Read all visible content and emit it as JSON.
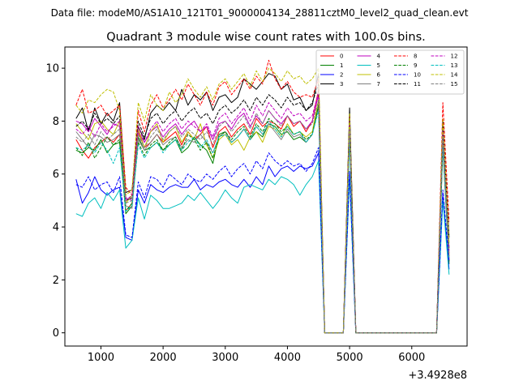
{
  "chart_data": {
    "type": "line",
    "suptitle": "Data file: modeM0/AS1A10_121T01_9000004134_28811cztM0_level2_quad_clean.evt",
    "title": "Quadrant 3 module wise count rates with 100.0s bins.",
    "xlabel": "",
    "ylabel": "",
    "x_offset_label": "+3.4928e8",
    "xlim": [
      420,
      6890
    ],
    "ylim": [
      -0.5,
      10.8
    ],
    "x_ticks": [
      1000,
      2000,
      3000,
      4000,
      5000,
      6000
    ],
    "x_tick_labels": [
      "1000",
      "2000",
      "3000",
      "4000",
      "5000",
      "6000"
    ],
    "y_ticks": [
      0,
      2,
      4,
      6,
      8,
      10
    ],
    "y_tick_labels": [
      "0",
      "2",
      "4",
      "6",
      "8",
      "10"
    ],
    "x": [
      600,
      700,
      800,
      900,
      1000,
      1100,
      1200,
      1300,
      1400,
      1500,
      1600,
      1700,
      1800,
      1900,
      2000,
      2100,
      2200,
      2300,
      2400,
      2500,
      2600,
      2700,
      2800,
      2900,
      3000,
      3100,
      3200,
      3300,
      3400,
      3500,
      3600,
      3700,
      3800,
      3900,
      4000,
      4100,
      4200,
      4300,
      4400,
      4500,
      4600,
      4700,
      4800,
      4900,
      5000,
      5100,
      5200,
      5300,
      5400,
      5500,
      5600,
      5700,
      5800,
      5900,
      6000,
      6100,
      6200,
      6300,
      6400,
      6500,
      6600
    ],
    "series": [
      {
        "name": "0",
        "color": "#ff0000",
        "dash": "solid",
        "values": [
          7.3,
          6.9,
          6.6,
          7.0,
          7.2,
          7.4,
          7.2,
          7.5,
          4.6,
          4.9,
          7.6,
          7.0,
          7.2,
          7.5,
          7.2,
          7.4,
          7.6,
          7.1,
          7.6,
          7.3,
          7.5,
          7.8,
          7.0,
          7.6,
          7.8,
          7.4,
          7.7,
          7.9,
          7.5,
          8.1,
          7.8,
          8.0,
          7.9,
          7.7,
          8.2,
          7.8,
          8.0,
          7.6,
          8.0,
          9.2,
          0,
          0,
          0,
          0,
          8.2,
          0,
          0,
          0,
          0,
          0,
          0,
          0,
          0,
          0,
          0,
          0,
          0,
          0,
          0,
          7.5,
          3.0
        ]
      },
      {
        "name": "1",
        "color": "#008000",
        "dash": "solid",
        "values": [
          6.9,
          6.8,
          7.0,
          6.9,
          7.3,
          6.8,
          7.1,
          7.2,
          4.5,
          4.8,
          7.4,
          6.9,
          7.0,
          7.2,
          6.9,
          7.1,
          7.3,
          6.8,
          7.0,
          7.4,
          7.1,
          6.9,
          6.4,
          7.5,
          7.6,
          7.2,
          7.4,
          7.7,
          7.3,
          7.6,
          7.4,
          7.9,
          7.8,
          7.5,
          7.6,
          7.3,
          7.4,
          7.2,
          7.5,
          8.6,
          0,
          0,
          0,
          0,
          7.6,
          0,
          0,
          0,
          0,
          0,
          0,
          0,
          0,
          0,
          0,
          0,
          0,
          0,
          0,
          7.0,
          2.6
        ]
      },
      {
        "name": "2",
        "color": "#0000ff",
        "dash": "solid",
        "values": [
          5.8,
          4.9,
          5.3,
          5.9,
          5.4,
          5.2,
          5.4,
          5.5,
          3.6,
          3.5,
          5.4,
          4.9,
          5.6,
          5.4,
          5.3,
          5.5,
          5.6,
          5.5,
          5.5,
          5.8,
          5.4,
          5.6,
          5.5,
          5.7,
          5.8,
          5.6,
          5.5,
          5.8,
          5.5,
          5.9,
          5.6,
          6.3,
          5.9,
          6.2,
          6.3,
          6.1,
          6.3,
          6.2,
          6.3,
          6.8,
          0,
          0,
          0,
          0,
          6.0,
          0,
          0,
          0,
          0,
          0,
          0,
          0,
          0,
          0,
          0,
          0,
          0,
          0,
          0,
          5.2,
          2.4
        ]
      },
      {
        "name": "3",
        "color": "#000000",
        "dash": "solid",
        "values": [
          8.1,
          8.5,
          7.6,
          8.5,
          7.9,
          8.3,
          8.0,
          8.7,
          5.3,
          5.4,
          7.8,
          7.3,
          8.3,
          8.6,
          8.4,
          8.7,
          8.4,
          9.2,
          8.6,
          9.0,
          8.8,
          9.1,
          8.4,
          8.9,
          9.0,
          8.7,
          8.9,
          9.6,
          9.4,
          9.2,
          9.5,
          9.8,
          9.7,
          9.2,
          9.4,
          8.8,
          8.9,
          8.4,
          8.6,
          9.8,
          0,
          0,
          0,
          0,
          8.5,
          0,
          0,
          0,
          0,
          0,
          0,
          0,
          0,
          0,
          0,
          0,
          0,
          0,
          0,
          8.0,
          3.6
        ]
      },
      {
        "name": "4",
        "color": "#bf00bf",
        "dash": "solid",
        "values": [
          8.0,
          7.9,
          7.6,
          8.1,
          7.8,
          7.5,
          7.9,
          7.8,
          5.1,
          5.0,
          7.6,
          7.2,
          7.6,
          7.8,
          7.4,
          7.7,
          7.9,
          7.5,
          7.8,
          8.0,
          7.6,
          7.8,
          7.3,
          7.9,
          8.0,
          7.7,
          8.1,
          8.3,
          7.8,
          8.2,
          7.9,
          8.4,
          8.1,
          7.9,
          8.2,
          7.9,
          8.0,
          7.7,
          8.0,
          9.0,
          0,
          0,
          0,
          0,
          7.9,
          0,
          0,
          0,
          0,
          0,
          0,
          0,
          0,
          0,
          0,
          0,
          0,
          0,
          0,
          7.6,
          2.8
        ]
      },
      {
        "name": "5",
        "color": "#00bfbf",
        "dash": "solid",
        "values": [
          4.5,
          4.4,
          4.9,
          5.1,
          4.7,
          5.3,
          5.0,
          5.4,
          3.2,
          3.5,
          5.1,
          4.3,
          5.2,
          5.0,
          4.7,
          4.7,
          4.8,
          4.9,
          5.2,
          5.0,
          5.3,
          5.0,
          4.7,
          5.0,
          5.4,
          5.1,
          4.9,
          5.5,
          5.6,
          5.5,
          5.4,
          5.8,
          5.6,
          5.9,
          5.8,
          5.6,
          5.2,
          5.6,
          5.9,
          6.5,
          0,
          0,
          0,
          0,
          5.9,
          0,
          0,
          0,
          0,
          0,
          0,
          0,
          0,
          0,
          0,
          0,
          0,
          0,
          0,
          5.0,
          2.2
        ]
      },
      {
        "name": "6",
        "color": "#bfbf00",
        "dash": "solid",
        "values": [
          7.9,
          7.6,
          7.3,
          7.9,
          8.0,
          7.7,
          7.5,
          8.0,
          4.9,
          5.2,
          7.7,
          7.0,
          7.6,
          7.9,
          7.2,
          7.6,
          7.8,
          7.2,
          7.6,
          7.3,
          7.9,
          7.1,
          6.6,
          7.3,
          7.5,
          7.1,
          7.3,
          6.9,
          7.4,
          7.6,
          7.2,
          7.8,
          7.7,
          7.4,
          7.9,
          7.5,
          7.6,
          7.4,
          7.6,
          8.8,
          0,
          0,
          0,
          0,
          7.7,
          0,
          0,
          0,
          0,
          0,
          0,
          0,
          0,
          0,
          0,
          0,
          0,
          0,
          0,
          7.2,
          2.9
        ]
      },
      {
        "name": "7",
        "color": "#808080",
        "dash": "solid",
        "values": [
          7.6,
          7.3,
          7.0,
          7.5,
          7.4,
          7.2,
          7.3,
          7.5,
          4.8,
          4.7,
          7.3,
          6.9,
          7.2,
          7.5,
          7.1,
          7.3,
          7.4,
          7.0,
          7.3,
          7.2,
          7.5,
          7.2,
          6.8,
          7.4,
          7.6,
          7.2,
          7.4,
          7.7,
          7.3,
          7.8,
          7.5,
          7.9,
          7.6,
          7.3,
          7.7,
          7.4,
          7.5,
          7.2,
          7.5,
          8.5,
          0,
          0,
          0,
          0,
          7.4,
          0,
          0,
          0,
          0,
          0,
          0,
          0,
          0,
          0,
          0,
          0,
          0,
          0,
          0,
          7.1,
          2.7
        ]
      },
      {
        "name": "8",
        "color": "#ff0000",
        "dash": "dashed",
        "values": [
          8.6,
          9.2,
          8.3,
          8.4,
          8.6,
          8.2,
          8.4,
          8.6,
          5.5,
          5.2,
          8.4,
          7.6,
          8.6,
          9.0,
          8.5,
          8.8,
          9.2,
          8.8,
          9.4,
          9.0,
          8.6,
          9.1,
          8.6,
          9.3,
          9.5,
          9.0,
          9.3,
          9.6,
          9.2,
          9.7,
          9.4,
          10.3,
          9.6,
          9.2,
          9.5,
          9.1,
          8.9,
          9.0,
          8.9,
          9.6,
          0,
          0,
          0,
          0,
          8.2,
          0,
          0,
          0,
          0,
          0,
          0,
          0,
          0,
          0,
          0,
          0,
          0,
          0,
          0,
          8.7,
          4.2
        ]
      },
      {
        "name": "9",
        "color": "#008000",
        "dash": "dashed",
        "values": [
          7.0,
          6.7,
          7.2,
          6.6,
          7.0,
          7.4,
          7.1,
          7.3,
          4.6,
          4.9,
          7.2,
          6.7,
          7.1,
          7.3,
          6.9,
          7.2,
          7.4,
          6.9,
          7.5,
          7.3,
          6.9,
          7.2,
          6.6,
          7.4,
          7.6,
          7.3,
          7.6,
          7.8,
          7.4,
          7.9,
          7.6,
          8.1,
          7.9,
          7.6,
          7.8,
          7.5,
          7.6,
          7.3,
          7.5,
          8.6,
          0,
          0,
          0,
          0,
          7.5,
          0,
          0,
          0,
          0,
          0,
          0,
          0,
          0,
          0,
          0,
          0,
          0,
          0,
          0,
          7.3,
          2.7
        ]
      },
      {
        "name": "10",
        "color": "#0000ff",
        "dash": "dashed",
        "values": [
          5.6,
          5.5,
          5.9,
          5.4,
          5.6,
          5.7,
          5.3,
          5.9,
          3.7,
          3.6,
          5.7,
          5.1,
          5.9,
          5.8,
          5.5,
          6.0,
          5.8,
          5.6,
          6.0,
          5.8,
          5.7,
          6.0,
          5.8,
          6.1,
          6.3,
          5.9,
          6.2,
          6.4,
          6.0,
          6.5,
          6.2,
          6.8,
          6.5,
          6.3,
          6.5,
          6.3,
          6.4,
          6.1,
          6.4,
          7.0,
          0,
          0,
          0,
          0,
          6.1,
          0,
          0,
          0,
          0,
          0,
          0,
          0,
          0,
          0,
          0,
          0,
          0,
          0,
          0,
          5.4,
          2.7
        ]
      },
      {
        "name": "11",
        "color": "#000000",
        "dash": "dashed",
        "values": [
          7.8,
          8.0,
          7.7,
          8.3,
          7.9,
          8.1,
          7.9,
          8.2,
          5.0,
          5.1,
          8.0,
          7.4,
          8.1,
          8.3,
          7.9,
          8.2,
          8.4,
          8.0,
          8.3,
          8.5,
          8.1,
          8.3,
          7.9,
          8.4,
          8.6,
          8.3,
          8.5,
          8.8,
          8.4,
          8.9,
          8.6,
          9.0,
          8.8,
          8.5,
          8.9,
          8.6,
          8.7,
          8.4,
          8.7,
          9.4,
          0,
          0,
          0,
          0,
          8.3,
          0,
          0,
          0,
          0,
          0,
          0,
          0,
          0,
          0,
          0,
          0,
          0,
          0,
          0,
          8.0,
          3.2
        ]
      },
      {
        "name": "12",
        "color": "#bf00bf",
        "dash": "dashed",
        "values": [
          7.7,
          7.5,
          7.8,
          7.4,
          7.9,
          7.6,
          7.8,
          8.0,
          5.0,
          5.2,
          7.8,
          7.2,
          7.7,
          8.0,
          7.6,
          7.9,
          8.1,
          7.7,
          8.0,
          7.8,
          7.6,
          7.9,
          7.4,
          8.1,
          8.3,
          7.9,
          8.2,
          8.5,
          8.0,
          8.6,
          8.2,
          8.7,
          8.4,
          8.1,
          8.5,
          8.2,
          8.3,
          8.0,
          8.2,
          9.1,
          0,
          0,
          0,
          0,
          8.0,
          0,
          0,
          0,
          0,
          0,
          0,
          0,
          0,
          0,
          0,
          0,
          0,
          0,
          0,
          7.7,
          3.1
        ]
      },
      {
        "name": "13",
        "color": "#00bfbf",
        "dash": "dashed",
        "values": [
          7.0,
          6.9,
          7.1,
          6.8,
          7.2,
          6.9,
          6.4,
          7.0,
          4.6,
          4.8,
          7.1,
          6.6,
          7.0,
          7.2,
          6.8,
          7.1,
          7.3,
          6.9,
          7.2,
          7.4,
          7.0,
          7.3,
          6.8,
          7.4,
          7.5,
          7.2,
          7.4,
          7.7,
          7.3,
          7.8,
          7.5,
          8.0,
          7.7,
          7.4,
          7.8,
          7.5,
          7.6,
          7.2,
          7.5,
          8.4,
          0,
          0,
          0,
          0,
          7.3,
          0,
          0,
          0,
          0,
          0,
          0,
          0,
          0,
          0,
          0,
          0,
          0,
          0,
          0,
          7.0,
          2.8
        ]
      },
      {
        "name": "14",
        "color": "#bfbf00",
        "dash": "dashed",
        "values": [
          8.6,
          8.3,
          8.8,
          8.7,
          9.0,
          9.2,
          9.1,
          8.4,
          5.2,
          5.4,
          8.7,
          8.0,
          9.0,
          8.6,
          8.4,
          9.1,
          8.7,
          9.0,
          9.6,
          9.2,
          8.9,
          9.3,
          8.8,
          9.4,
          9.6,
          9.2,
          9.5,
          9.8,
          9.3,
          9.9,
          9.5,
          10.0,
          9.8,
          9.5,
          9.9,
          9.6,
          9.7,
          9.4,
          9.6,
          10.0,
          0,
          0,
          0,
          0,
          8.3,
          0,
          0,
          0,
          0,
          0,
          0,
          0,
          0,
          0,
          0,
          0,
          0,
          0,
          0,
          8.1,
          3.4
        ]
      },
      {
        "name": "15",
        "color": "#808080",
        "dash": "dashed",
        "values": [
          7.4,
          7.2,
          7.5,
          7.1,
          7.6,
          7.3,
          7.5,
          7.7,
          4.9,
          5.0,
          7.5,
          7.0,
          7.4,
          7.7,
          7.3,
          7.6,
          7.8,
          7.4,
          7.7,
          7.5,
          7.3,
          7.6,
          7.1,
          7.8,
          8.0,
          7.6,
          7.9,
          8.2,
          7.7,
          8.3,
          7.9,
          8.4,
          8.1,
          7.8,
          8.2,
          7.9,
          8.0,
          7.7,
          7.9,
          8.8,
          0,
          0,
          0,
          0,
          7.7,
          0,
          0,
          0,
          0,
          0,
          0,
          0,
          0,
          0,
          0,
          0,
          0,
          0,
          0,
          7.4,
          2.9
        ]
      }
    ],
    "legend": {
      "placement": "top-right",
      "columns": 4
    }
  }
}
